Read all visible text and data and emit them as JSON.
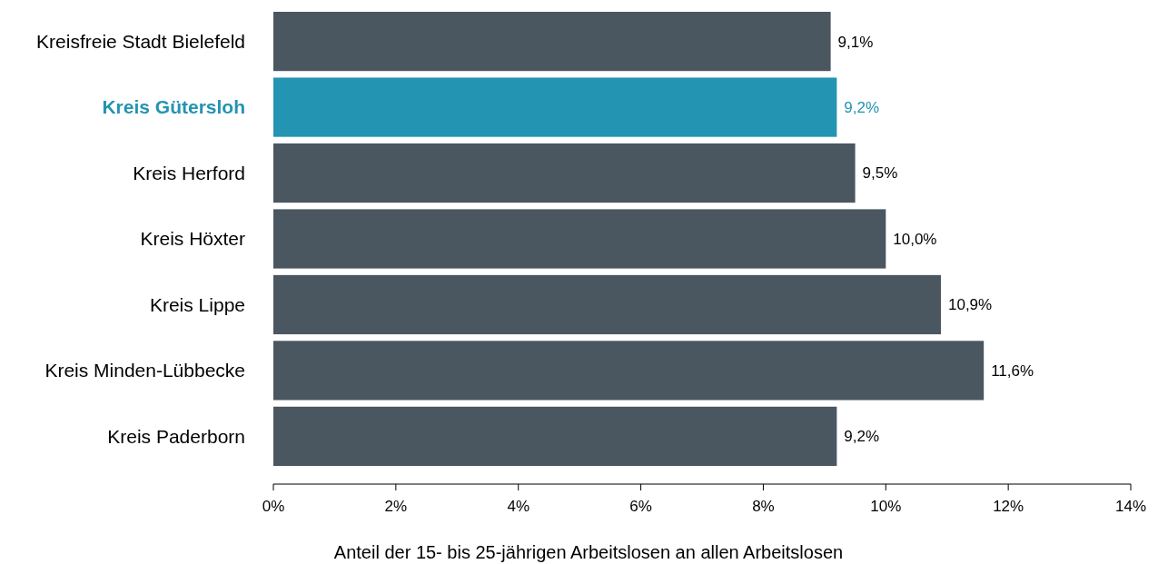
{
  "chart_data": {
    "type": "bar",
    "orientation": "horizontal",
    "xlabel": "Anteil der 15- bis 25-jährigen Arbeitslosen an allen Arbeitslosen",
    "categories": [
      "Kreisfreie Stadt Bielefeld",
      "Kreis Gütersloh",
      "Kreis Herford",
      "Kreis Höxter",
      "Kreis Lippe",
      "Kreis Minden-Lübbecke",
      "Kreis Paderborn"
    ],
    "values": [
      9.1,
      9.2,
      9.5,
      10.0,
      10.9,
      11.6,
      9.2
    ],
    "value_labels": [
      "9,1%",
      "9,2%",
      "9,5%",
      "10,0%",
      "10,9%",
      "11,6%",
      "9,2%"
    ],
    "colors": [
      "#4a5660",
      "#2394b1",
      "#4a5660",
      "#4a5660",
      "#4a5660",
      "#4a5660",
      "#4a5660"
    ],
    "xlim": [
      0,
      14
    ],
    "xticks": [
      {
        "value": 0,
        "label": "0%"
      },
      {
        "value": 2,
        "label": "2%"
      },
      {
        "value": 4,
        "label": "4%"
      },
      {
        "value": 6,
        "label": "6%"
      },
      {
        "value": 8,
        "label": "8%"
      },
      {
        "value": 10,
        "label": "10%"
      },
      {
        "value": 12,
        "label": "12%"
      },
      {
        "value": 14,
        "label": "14%"
      }
    ],
    "grid": false
  }
}
